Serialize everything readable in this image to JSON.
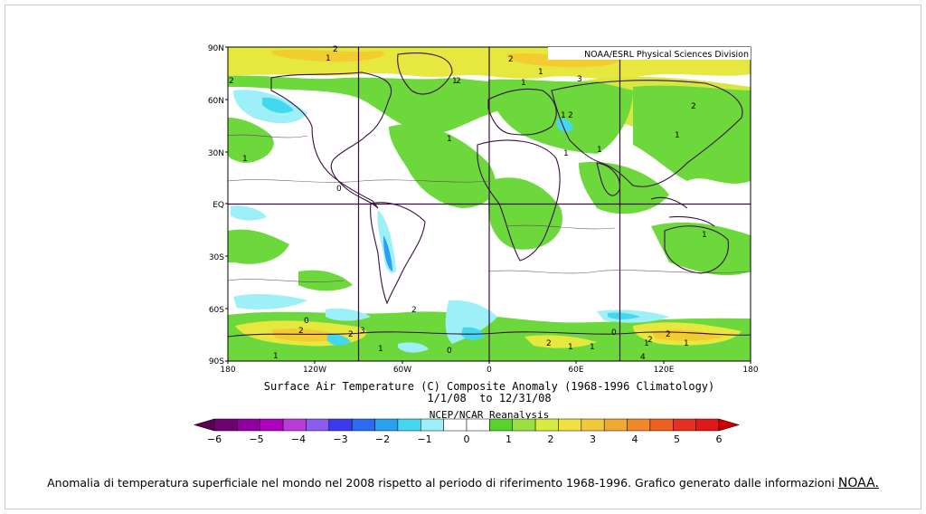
{
  "map": {
    "credit": "NOAA/ESRL Physical Sciences Division",
    "lat_labels": [
      "90N",
      "60N",
      "30N",
      "EQ",
      "30S",
      "60S",
      "90S"
    ],
    "lon_labels": [
      "180",
      "120W",
      "60W",
      "0",
      "60E",
      "120E",
      "180"
    ],
    "title_line1": "Surface Air Temperature (C) Composite Anomaly (1968-1996 Climatology)",
    "title_line2": "1/1/08  to 12/31/08",
    "source": "NCEP/NCAR Reanalysis",
    "contour_labels": [
      "2",
      "1",
      "2",
      "1",
      "1",
      "2",
      "1",
      "2",
      "3",
      "1",
      "1",
      "2",
      "2",
      "1",
      "1",
      "1",
      "1",
      "0",
      "2",
      "2",
      "0",
      "3",
      "2",
      "1",
      "1",
      "0",
      "2",
      "1",
      "0",
      "1",
      "1",
      "2",
      "4",
      "1",
      "2",
      "1"
    ]
  },
  "colorbar": {
    "ticks": [
      "-6",
      "-5",
      "-4",
      "-3",
      "-2",
      "-1",
      "0",
      "1",
      "2",
      "3",
      "4",
      "5",
      "6"
    ],
    "left_arrow_color": "#5a0050",
    "right_arrow_color": "#d00000",
    "colors": [
      "#6e0070",
      "#9000a0",
      "#b000c0",
      "#b83cd8",
      "#8a5cf0",
      "#3a3af0",
      "#2a6cf0",
      "#2aa0f0",
      "#44d8f0",
      "#9ef0f8",
      "#ffffff",
      "#ffffff",
      "#58d428",
      "#9ce040",
      "#d8ec40",
      "#f0e040",
      "#f0c838",
      "#f0a830",
      "#f08828",
      "#f06020",
      "#e83020",
      "#e01818"
    ]
  },
  "caption": {
    "text": "Anomalia di temperatura superficiale nel mondo nel 2008 rispetto al periodo di riferimento 1968-1996. Grafico generato dalle informazioni",
    "link": "NOAA."
  }
}
